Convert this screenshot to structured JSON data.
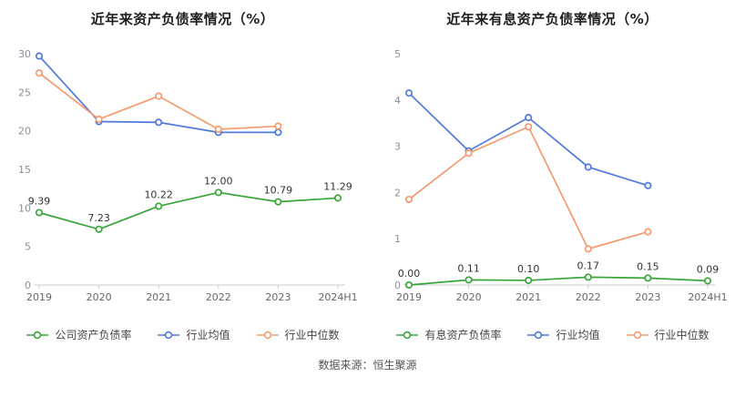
{
  "source_note": "数据来源：恒生聚源",
  "chart_data": [
    {
      "type": "line",
      "title": "近年来资产负债率情况（%）",
      "categories": [
        "2019",
        "2020",
        "2021",
        "2022",
        "2023",
        "2024H1"
      ],
      "ylim": [
        0,
        30
      ],
      "yticks": [
        0,
        5,
        10,
        15,
        20,
        25,
        30
      ],
      "grid": false,
      "legend_position": "bottom",
      "series": [
        {
          "key": "company-ratio",
          "name": "公司资产负债率",
          "color": "#3aa53a",
          "values": [
            9.39,
            7.23,
            10.22,
            12.0,
            10.79,
            11.29
          ],
          "labels": [
            "9.39",
            "7.23",
            "10.22",
            "12.00",
            "10.79",
            "11.29"
          ]
        },
        {
          "key": "industry-average",
          "name": "行业均值",
          "color": "#5079d9",
          "values": [
            29.7,
            21.2,
            21.1,
            19.8,
            19.8,
            null
          ]
        },
        {
          "key": "industry-median",
          "name": "行业中位数",
          "color": "#f59a6f",
          "values": [
            27.5,
            21.5,
            24.5,
            20.2,
            20.6,
            null
          ]
        }
      ]
    },
    {
      "type": "line",
      "title": "近年来有息资产负债率情况（%）",
      "categories": [
        "2019",
        "2020",
        "2021",
        "2022",
        "2023",
        "2024H1"
      ],
      "ylim": [
        0,
        5
      ],
      "yticks": [
        0,
        1,
        2,
        3,
        4,
        5
      ],
      "grid": false,
      "legend_position": "bottom",
      "series": [
        {
          "key": "interest-bearing-ratio",
          "name": "有息资产负债率",
          "color": "#3aa53a",
          "values": [
            0.0,
            0.11,
            0.1,
            0.17,
            0.15,
            0.09
          ],
          "labels": [
            "0.00",
            "0.11",
            "0.10",
            "0.17",
            "0.15",
            "0.09"
          ]
        },
        {
          "key": "industry-average",
          "name": "行业均值",
          "color": "#5079d9",
          "values": [
            4.15,
            2.9,
            3.62,
            2.55,
            2.15,
            null
          ]
        },
        {
          "key": "industry-median",
          "name": "行业中位数",
          "color": "#f59a6f",
          "values": [
            1.85,
            2.85,
            3.42,
            0.78,
            1.15,
            null
          ]
        }
      ]
    }
  ]
}
